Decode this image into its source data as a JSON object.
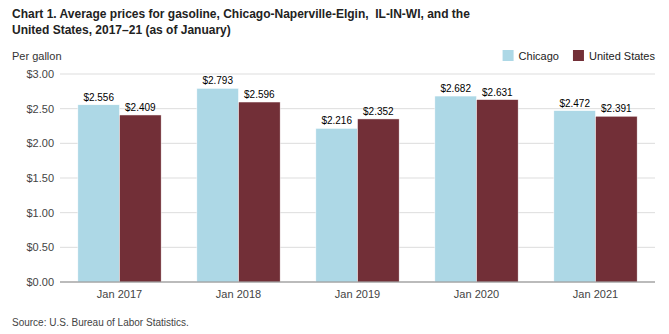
{
  "chart_data": {
    "type": "bar",
    "title": "Chart 1. Average prices for gasoline, Chicago-Naperville-Elgin,  IL-IN-WI, and the\nUnited States, 2017–21 (as of January)",
    "ylabel": "Per gallon",
    "source": "Source: U.S. Bureau of Labor Statistics.",
    "categories": [
      "Jan 2017",
      "Jan 2018",
      "Jan 2019",
      "Jan 2020",
      "Jan 2021"
    ],
    "series": [
      {
        "name": "Chicago",
        "color": "#add8e6",
        "values": [
          2.556,
          2.793,
          2.216,
          2.682,
          2.472
        ],
        "value_labels": [
          "$2.556",
          "$2.793",
          "$2.216",
          "$2.682",
          "$2.472"
        ]
      },
      {
        "name": "United States",
        "color": "#722F37",
        "values": [
          2.409,
          2.596,
          2.352,
          2.631,
          2.391
        ],
        "value_labels": [
          "$2.409",
          "$2.596",
          "$2.352",
          "$2.631",
          "$2.391"
        ]
      }
    ],
    "ylim": [
      0,
      3.0
    ],
    "yticks": [
      {
        "value": 0.0,
        "label": "$0.00"
      },
      {
        "value": 0.5,
        "label": "$0.50"
      },
      {
        "value": 1.0,
        "label": "$1.00"
      },
      {
        "value": 1.5,
        "label": "$1.50"
      },
      {
        "value": 2.0,
        "label": "$2.00"
      },
      {
        "value": 2.5,
        "label": "$2.50"
      },
      {
        "value": 3.0,
        "label": "$3.00"
      }
    ],
    "grid": true,
    "legend": "upper right",
    "data_labels": true
  }
}
